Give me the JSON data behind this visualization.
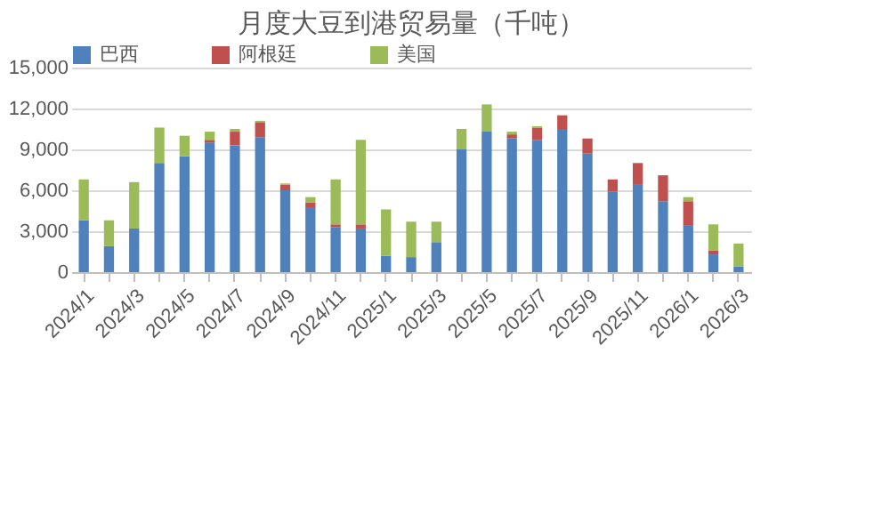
{
  "chart_data": {
    "type": "bar",
    "title": "月度大豆到港贸易量（千吨）",
    "stacked": true,
    "categories": [
      "2024/1",
      null,
      "2024/3",
      null,
      "2024/5",
      null,
      "2024/7",
      null,
      "2024/9",
      null,
      "2024/11",
      null,
      "2025/1",
      null,
      "2025/3",
      null,
      "2025/5",
      null,
      "2025/7",
      null,
      "2025/9",
      null,
      "2025/11",
      null,
      "2026/1",
      null,
      "2026/3"
    ],
    "series": [
      {
        "name": "巴西",
        "color": "#4f81bd",
        "values": [
          3800,
          1900,
          3200,
          8000,
          8500,
          9500,
          9300,
          9900,
          6000,
          4700,
          3300,
          3200,
          1200,
          1100,
          2200,
          9000,
          10300,
          9800,
          9700,
          10500,
          8700,
          5900,
          6400,
          5200,
          3400,
          1300,
          400
        ]
      },
      {
        "name": "阿根廷",
        "color": "#c0504d",
        "values": [
          0,
          0,
          0,
          0,
          0,
          200,
          1000,
          1100,
          400,
          400,
          200,
          300,
          0,
          0,
          0,
          0,
          0,
          300,
          900,
          1000,
          1100,
          900,
          1600,
          1900,
          1800,
          300,
          0
        ]
      },
      {
        "name": "美国",
        "color": "#9bbb59",
        "values": [
          3000,
          1900,
          3400,
          2600,
          1500,
          600,
          200,
          100,
          100,
          400,
          3300,
          6200,
          3400,
          2600,
          1500,
          1500,
          2000,
          200,
          100,
          0,
          0,
          0,
          0,
          0,
          300,
          1900,
          1700
        ]
      }
    ],
    "ylim": [
      0,
      15000
    ],
    "yticks": [
      {
        "value": 0,
        "label": "0"
      },
      {
        "value": 3000,
        "label": "3,000"
      },
      {
        "value": 6000,
        "label": "6,000"
      },
      {
        "value": 9000,
        "label": "9,000"
      },
      {
        "value": 12000,
        "label": "12,000"
      },
      {
        "value": 15000,
        "label": "15,000"
      }
    ],
    "grid": "y",
    "legend": "top"
  }
}
